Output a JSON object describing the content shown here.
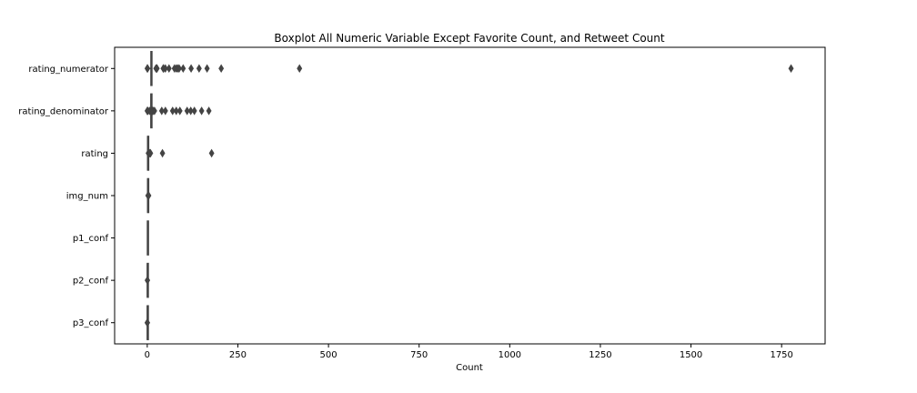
{
  "chart_data": {
    "type": "boxplot",
    "orientation": "horizontal",
    "title": "Boxplot All Numeric Variable Except Favorite Count, and Retweet Count",
    "xlabel": "Count",
    "ylabel": "",
    "xlim": [
      -90,
      1870
    ],
    "xticks": [
      0,
      250,
      500,
      750,
      1000,
      1250,
      1500,
      1750
    ],
    "grid": false,
    "colors": {
      "box": "#4c72b0",
      "line": "#444444",
      "flier": "#444444",
      "frame": "#000000"
    },
    "categories": [
      "rating_numerator",
      "rating_denominator",
      "rating",
      "img_num",
      "p1_conf",
      "p2_conf",
      "p3_conf"
    ],
    "series": [
      {
        "name": "rating_numerator",
        "whisker_low": 2,
        "q1": 10,
        "median": 11,
        "q3": 12,
        "whisker_high": 14,
        "outliers": [
          0,
          1,
          24,
          26,
          27,
          44,
          45,
          50,
          60,
          75,
          80,
          84,
          88,
          99,
          121,
          143,
          165,
          204,
          420,
          1776
        ]
      },
      {
        "name": "rating_denominator",
        "whisker_low": 10,
        "q1": 10,
        "median": 10,
        "q3": 10,
        "whisker_high": 10,
        "outliers": [
          0,
          2,
          7,
          11,
          15,
          16,
          20,
          40,
          50,
          70,
          80,
          90,
          110,
          120,
          130,
          150,
          170
        ]
      },
      {
        "name": "rating",
        "whisker_low": 0,
        "q1": 1,
        "median": 1.1,
        "q3": 1.2,
        "whisker_high": 1.5,
        "outliers": [
          3,
          4,
          5,
          7,
          8,
          9,
          42,
          177.6
        ]
      },
      {
        "name": "img_num",
        "whisker_low": 1,
        "q1": 1,
        "median": 1,
        "q3": 1,
        "whisker_high": 1,
        "outliers": [
          2,
          3,
          4
        ]
      },
      {
        "name": "p1_conf",
        "whisker_low": 0,
        "q1": 0.36,
        "median": 0.59,
        "q3": 0.84,
        "whisker_high": 1,
        "outliers": []
      },
      {
        "name": "p2_conf",
        "whisker_low": 0,
        "q1": 0.05,
        "median": 0.12,
        "q3": 0.2,
        "whisker_high": 0.42,
        "outliers": [
          0.45,
          0.48
        ]
      },
      {
        "name": "p3_conf",
        "whisker_low": 0,
        "q1": 0.02,
        "median": 0.05,
        "q3": 0.09,
        "whisker_high": 0.19,
        "outliers": [
          0.2,
          0.25,
          0.27
        ]
      }
    ]
  }
}
